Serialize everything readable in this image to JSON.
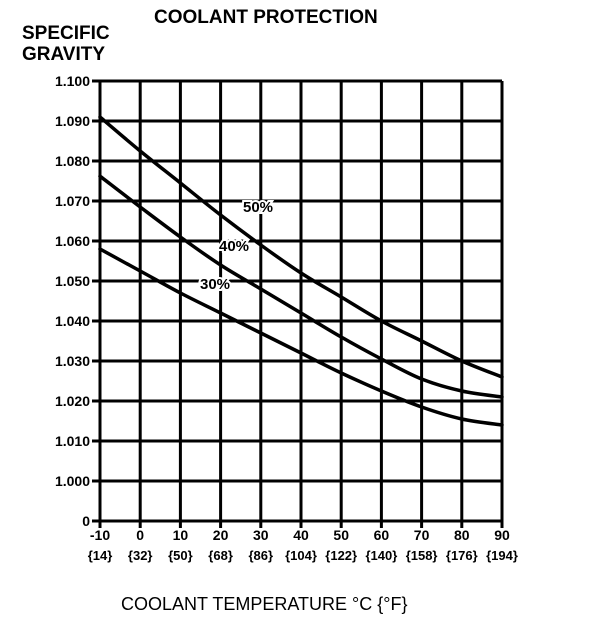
{
  "chart_data": {
    "type": "line",
    "title": "COOLANT PROTECTION",
    "ylabel_lines": [
      "SPECIFIC",
      "GRAVITY"
    ],
    "xlabel": "COOLANT TEMPERATURE °C {°F}",
    "x_ticks": [
      "-10",
      "0",
      "10",
      "20",
      "30",
      "40",
      "50",
      "60",
      "70",
      "80",
      "90"
    ],
    "x_ticks_f": [
      "{14}",
      "{32}",
      "{50}",
      "{68}",
      "{86}",
      "{104}",
      "{122}",
      "{140}",
      "{158}",
      "{176}",
      "{194}"
    ],
    "y_ticks": [
      "0",
      "1.000",
      "1.010",
      "1.020",
      "1.030",
      "1.040",
      "1.050",
      "1.060",
      "1.070",
      "1.080",
      "1.090",
      "1.100"
    ],
    "y_tick_values": [
      0.99,
      1.0,
      1.01,
      1.02,
      1.03,
      1.04,
      1.05,
      1.06,
      1.07,
      1.08,
      1.09,
      1.1
    ],
    "xlim": [
      -10,
      90
    ],
    "grid": true,
    "series": [
      {
        "name": "50%",
        "x": [
          -10,
          0,
          10,
          20,
          30,
          40,
          50,
          60,
          70,
          80,
          90
        ],
        "values": [
          1.091,
          1.0825,
          1.0745,
          1.0665,
          1.059,
          1.052,
          1.046,
          1.04,
          1.035,
          1.03,
          1.026
        ]
      },
      {
        "name": "40%",
        "x": [
          -10,
          0,
          10,
          20,
          30,
          40,
          50,
          60,
          70,
          80,
          90
        ],
        "values": [
          1.0762,
          1.0685,
          1.061,
          1.054,
          1.048,
          1.042,
          1.036,
          1.0305,
          1.0255,
          1.0225,
          1.021
        ]
      },
      {
        "name": "30%",
        "x": [
          -10,
          0,
          10,
          20,
          30,
          40,
          50,
          60,
          70,
          80,
          90
        ],
        "values": [
          1.058,
          1.0525,
          1.047,
          1.042,
          1.037,
          1.032,
          1.027,
          1.0225,
          1.0185,
          1.0155,
          1.014
        ]
      }
    ],
    "series_labels": [
      "50%",
      "40%",
      "30%"
    ]
  }
}
